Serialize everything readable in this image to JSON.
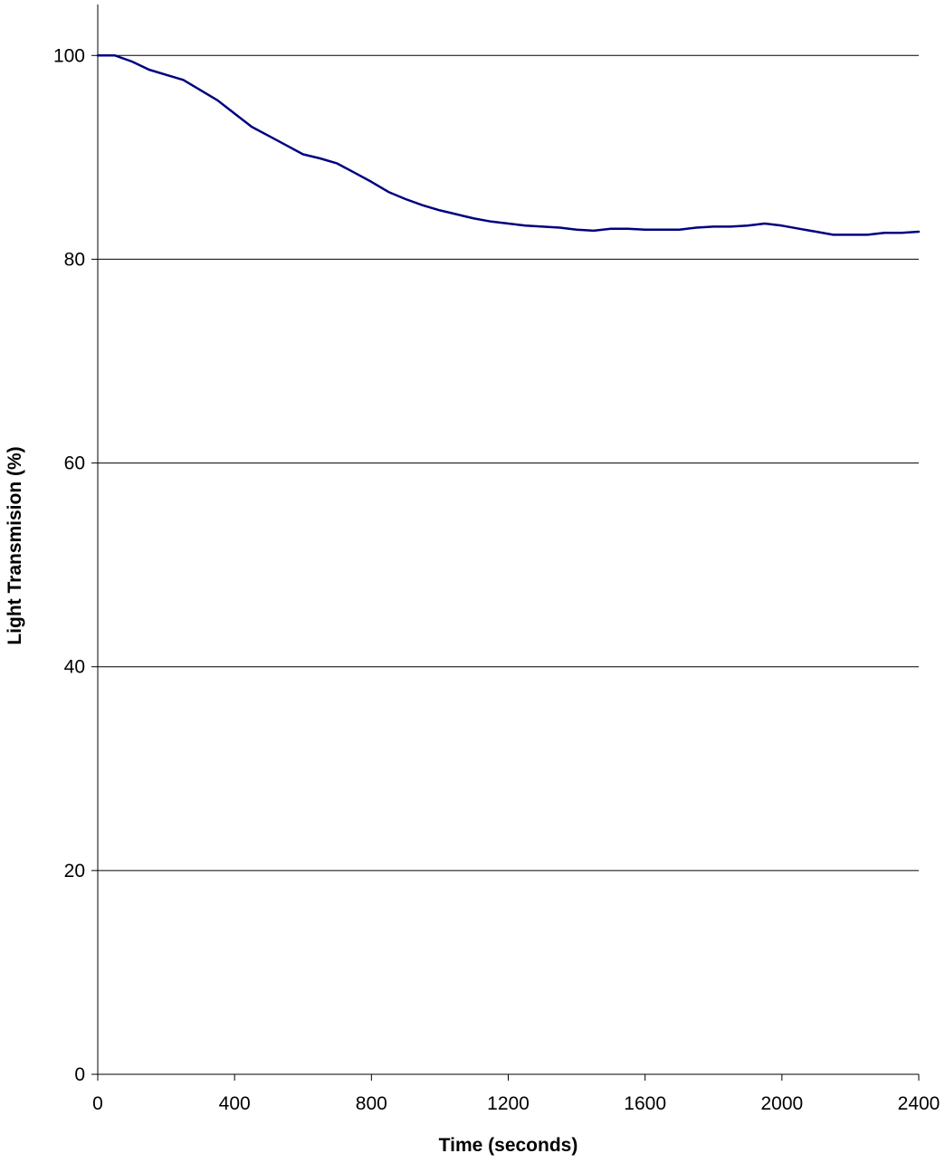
{
  "chart_data": {
    "type": "line",
    "title": "",
    "xlabel": "Time (seconds)",
    "ylabel": "Light Transmision (%)",
    "xlim": [
      0,
      2400
    ],
    "ylim": [
      0,
      105
    ],
    "x_ticks": [
      0,
      400,
      800,
      1200,
      1600,
      2000,
      2400
    ],
    "y_ticks": [
      0,
      20,
      40,
      60,
      80,
      100
    ],
    "x_tick_labels": [
      "0",
      "400",
      "800",
      "1200",
      "1600",
      "2000",
      "2400"
    ],
    "y_tick_labels": [
      "0",
      "20",
      "40",
      "60",
      "80",
      "100"
    ],
    "grid": "horizontal",
    "legend": "none",
    "colors": {
      "series": "#000080",
      "grid": "#000000",
      "axis": "#000000"
    },
    "series": [
      {
        "x": [
          0,
          50,
          100,
          150,
          200,
          250,
          300,
          350,
          400,
          450,
          500,
          550,
          600,
          650,
          700,
          750,
          800,
          850,
          900,
          950,
          1000,
          1050,
          1100,
          1150,
          1200,
          1250,
          1300,
          1350,
          1400,
          1450,
          1500,
          1550,
          1600,
          1650,
          1700,
          1750,
          1800,
          1850,
          1900,
          1950,
          2000,
          2050,
          2100,
          2150,
          2200,
          2250,
          2300,
          2350,
          2400
        ],
        "y": [
          100.0,
          100.0,
          99.4,
          98.6,
          98.1,
          97.6,
          96.6,
          95.6,
          94.3,
          93.0,
          92.1,
          91.2,
          90.3,
          89.9,
          89.4,
          88.5,
          87.6,
          86.6,
          85.9,
          85.3,
          84.8,
          84.4,
          84.0,
          83.7,
          83.5,
          83.3,
          83.2,
          83.1,
          82.9,
          82.8,
          83.0,
          83.0,
          82.9,
          82.9,
          82.9,
          83.1,
          83.2,
          83.2,
          83.3,
          83.5,
          83.3,
          83.0,
          82.7,
          82.4,
          82.4,
          82.4,
          82.6,
          82.6,
          82.7
        ]
      }
    ]
  }
}
